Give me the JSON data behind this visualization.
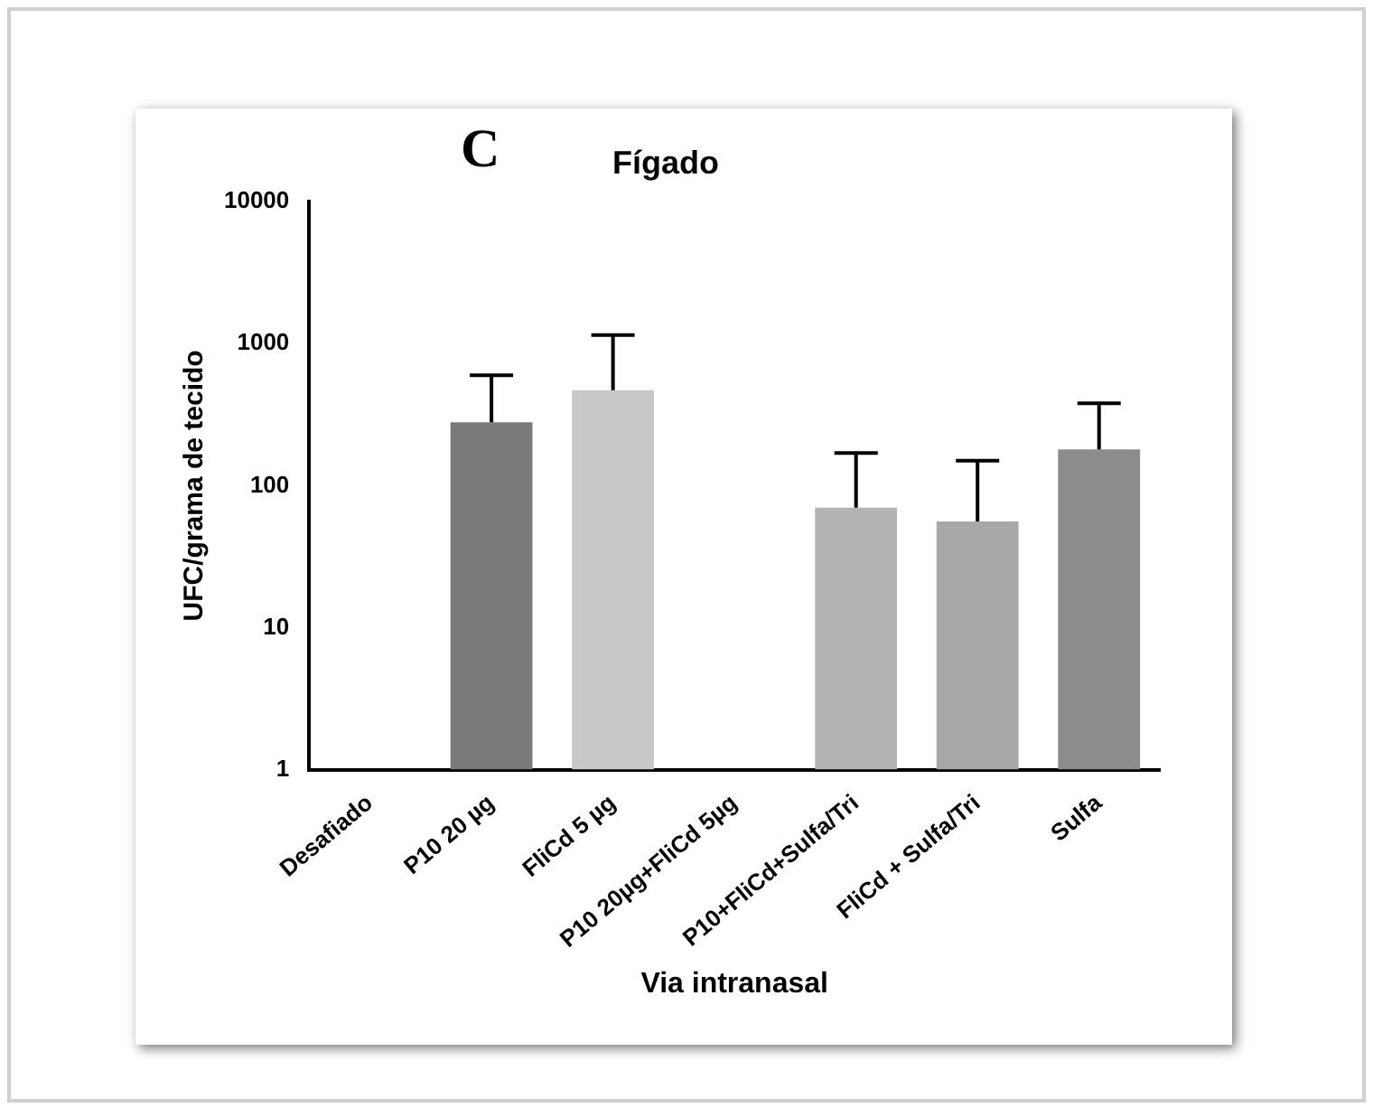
{
  "chart_data": {
    "type": "bar",
    "title": "Fígado",
    "xlabel": "Via intranasal",
    "ylabel": "UFC/grama de tecido",
    "annotations": [
      "C"
    ],
    "categories": [
      "Desafiado",
      "P10 20 µg",
      "FliCd 5 µg",
      "P10 20µg+FliCd 5µg",
      "P10+FliCd+Sulfa/Tri",
      "FliCd + Sulfa/Tri",
      "Sulfa"
    ],
    "values": [
      null,
      280,
      470,
      null,
      70,
      56,
      180
    ],
    "errors": [
      null,
      [
        280,
        600
      ],
      [
        470,
        1150
      ],
      null,
      [
        70,
        170
      ],
      [
        56,
        150
      ],
      [
        180,
        380
      ]
    ],
    "colors": [
      "#808080",
      "#7a7a7a",
      "#c8c8c8",
      "#909090",
      "#b4b4b4",
      "#a8a8a8",
      "#8c8c8c"
    ],
    "log": "y",
    "ylim": [
      1,
      10000
    ],
    "yticks": [
      1,
      10,
      100,
      1000,
      10000
    ],
    "grid": false,
    "legend": false
  }
}
